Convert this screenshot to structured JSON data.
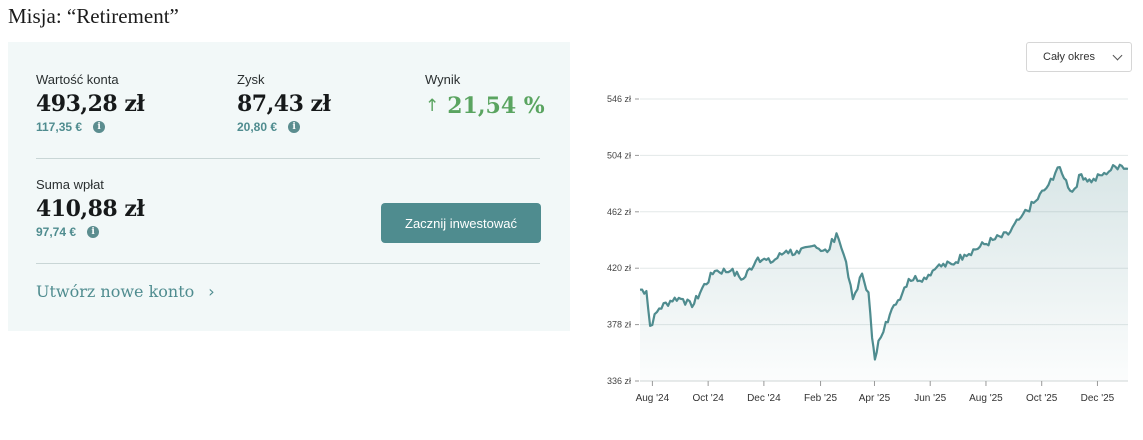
{
  "page": {
    "title": "Misja: “Retirement”"
  },
  "summary": {
    "account_value": {
      "label": "Wartość konta",
      "value": "493,28 zł",
      "sub": "117,35 €"
    },
    "profit": {
      "label": "Zysk",
      "value": "87,43 zł",
      "sub": "20,80 €"
    },
    "result": {
      "label": "Wynik",
      "value": "21,54 %"
    },
    "deposits": {
      "label": "Suma wpłat",
      "value": "410,88 zł",
      "sub": "97,74 €"
    },
    "info_glyph": "i",
    "invest_button": "Zacznij inwestować",
    "new_account_link": "Utwórz nowe konto"
  },
  "filter": {
    "period": "Cały okres"
  },
  "icons": [
    "info-icon",
    "arrow-up-icon",
    "chevron-right-icon",
    "chevron-down-icon"
  ],
  "colors": {
    "accent": "#4f8c8f",
    "positive": "#5aa460",
    "card_bg": "#f2f8f8",
    "line": "#4f8c8f"
  },
  "chart_data": {
    "type": "area",
    "y_ticks": [
      "546 zł",
      "504 zł",
      "462 zł",
      "420 zł",
      "378 zł",
      "336 zł"
    ],
    "y_tick_values": [
      546,
      504,
      462,
      420,
      378,
      336
    ],
    "ylim": [
      336,
      546
    ],
    "x_ticks": [
      "Aug '24",
      "Oct '24",
      "Dec '24",
      "Feb '25",
      "Apr '25",
      "Jun '25",
      "Aug '25",
      "Oct '25",
      "Dec '25"
    ],
    "x": [
      "2024-07-25",
      "2024-08-01",
      "2024-08-05",
      "2024-08-15",
      "2024-09-01",
      "2024-09-10",
      "2024-09-20",
      "2024-10-01",
      "2024-10-15",
      "2024-11-01",
      "2024-11-15",
      "2024-12-01",
      "2024-12-15",
      "2025-01-01",
      "2025-01-15",
      "2025-02-01",
      "2025-02-15",
      "2025-02-25",
      "2025-03-05",
      "2025-03-15",
      "2025-03-25",
      "2025-04-01",
      "2025-04-05",
      "2025-04-08",
      "2025-04-12",
      "2025-04-20",
      "2025-05-01",
      "2025-05-15",
      "2025-06-01",
      "2025-06-15",
      "2025-07-01",
      "2025-07-15",
      "2025-08-01",
      "2025-08-15",
      "2025-09-01",
      "2025-09-15",
      "2025-10-01",
      "2025-10-15",
      "2025-10-25",
      "2025-11-01",
      "2025-11-10",
      "2025-11-20",
      "2025-12-01",
      "2025-12-15",
      "2026-01-01",
      "2026-01-10"
    ],
    "y": [
      404,
      403,
      377,
      390,
      398,
      397,
      391,
      405,
      418,
      418,
      412,
      428,
      424,
      433,
      431,
      437,
      432,
      446,
      430,
      397,
      416,
      402,
      368,
      352,
      366,
      380,
      393,
      412,
      413,
      421,
      423,
      430,
      436,
      441,
      445,
      458,
      470,
      482,
      495,
      487,
      477,
      490,
      484,
      491,
      497,
      494
    ],
    "grid": true
  }
}
